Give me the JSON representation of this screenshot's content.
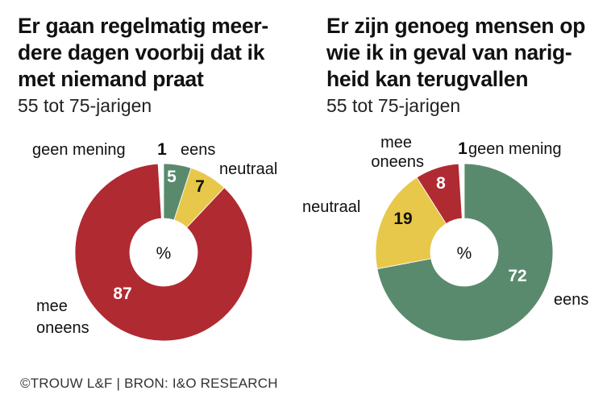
{
  "colors": {
    "eens": "#5a8a6e",
    "neutraal": "#e8c84a",
    "mee_oneens": "#b02a32",
    "geen_mening": "#ffffff",
    "value_light": "#ffffff",
    "value_dark": "#111111"
  },
  "footer": "©TROUW L&F | BRON: I&O RESEARCH",
  "chart_data": [
    {
      "type": "pie",
      "variant": "donut",
      "title_lines": [
        "Er gaan regelmatig meer-",
        "dere dagen voorbij dat ik",
        "met niemand praat"
      ],
      "subtitle": "55 tot 75-jarigen",
      "center_label": "%",
      "unit": "%",
      "slices": [
        {
          "key": "eens",
          "label": "eens",
          "label_lines": [
            "eens"
          ],
          "value": 5,
          "color": "#5a8a6e",
          "value_color": "#ffffff"
        },
        {
          "key": "neutraal",
          "label": "neutraal",
          "label_lines": [
            "neutraal"
          ],
          "value": 7,
          "color": "#e8c84a",
          "value_color": "#111111"
        },
        {
          "key": "mee_oneens",
          "label": "mee oneens",
          "label_lines": [
            "mee",
            "oneens"
          ],
          "value": 87,
          "color": "#b02a32",
          "value_color": "#ffffff"
        },
        {
          "key": "geen_mening",
          "label": "geen mening",
          "label_lines": [
            "geen mening"
          ],
          "value": 1,
          "color": "#ffffff",
          "value_color": "#111111"
        }
      ]
    },
    {
      "type": "pie",
      "variant": "donut",
      "title_lines": [
        "Er zijn genoeg mensen op",
        "wie ik in geval van narig-",
        "heid kan terugvallen"
      ],
      "subtitle": "55 tot 75-jarigen",
      "center_label": "%",
      "unit": "%",
      "slices": [
        {
          "key": "eens",
          "label": "eens",
          "label_lines": [
            "eens"
          ],
          "value": 72,
          "color": "#5a8a6e",
          "value_color": "#ffffff"
        },
        {
          "key": "neutraal",
          "label": "neutraal",
          "label_lines": [
            "neutraal"
          ],
          "value": 19,
          "color": "#e8c84a",
          "value_color": "#111111"
        },
        {
          "key": "mee_oneens",
          "label": "mee oneens",
          "label_lines": [
            "mee",
            "oneens"
          ],
          "value": 8,
          "color": "#b02a32",
          "value_color": "#ffffff"
        },
        {
          "key": "geen_mening",
          "label": "geen mening",
          "label_lines": [
            "geen mening"
          ],
          "value": 1,
          "color": "#ffffff",
          "value_color": "#111111"
        }
      ]
    }
  ]
}
